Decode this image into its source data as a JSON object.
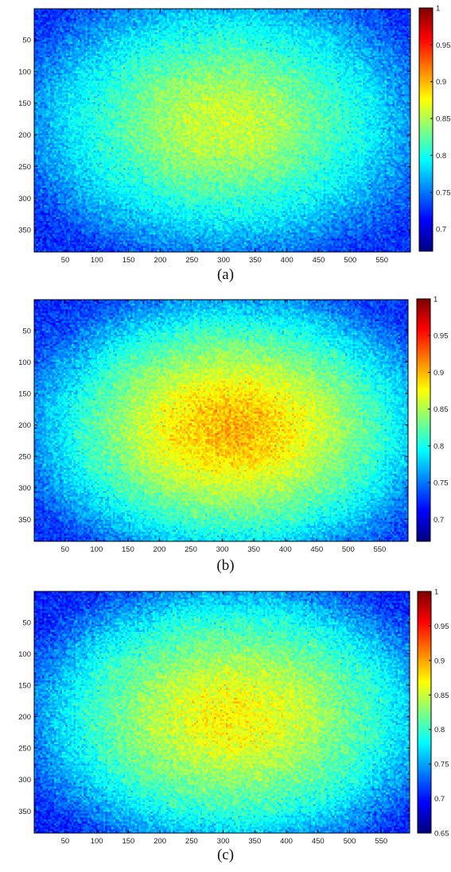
{
  "chart_data": [
    {
      "type": "heatmap",
      "panel_label": "(a)",
      "colormap": "jet",
      "x_ticks": [
        50,
        100,
        150,
        200,
        250,
        300,
        350,
        400,
        450,
        500,
        550
      ],
      "y_ticks": [
        50,
        100,
        150,
        200,
        250,
        300,
        350
      ],
      "xlim": [
        1,
        595
      ],
      "ylim": [
        1,
        385
      ],
      "colorbar_ticks": [
        0.7,
        0.75,
        0.8,
        0.85,
        0.9,
        0.95,
        1
      ],
      "colorbar_tick_labels": [
        "0.7",
        "0.75",
        "0.8",
        "0.85",
        "0.9",
        "0.95",
        "1"
      ],
      "clim": [
        0.67,
        1.0
      ],
      "peak": {
        "x": 300,
        "y": 180,
        "value": 0.86
      },
      "edge_value": 0.75,
      "corner_value": 0.72,
      "noise": 0.025
    },
    {
      "type": "heatmap",
      "panel_label": "(b)",
      "colormap": "jet",
      "x_ticks": [
        50,
        100,
        150,
        200,
        250,
        300,
        350,
        400,
        450,
        500,
        550
      ],
      "y_ticks": [
        50,
        100,
        150,
        200,
        250,
        300,
        350
      ],
      "xlim": [
        1,
        595
      ],
      "ylim": [
        1,
        385
      ],
      "colorbar_ticks": [
        0.7,
        0.75,
        0.8,
        0.85,
        0.9,
        0.95,
        1
      ],
      "colorbar_tick_labels": [
        "0.7",
        "0.75",
        "0.8",
        "0.85",
        "0.9",
        "0.95",
        "1"
      ],
      "clim": [
        0.67,
        1.0
      ],
      "peak": {
        "x": 315,
        "y": 205,
        "value": 0.9
      },
      "edge_value": 0.76,
      "corner_value": 0.72,
      "noise": 0.025
    },
    {
      "type": "heatmap",
      "panel_label": "(c)",
      "colormap": "jet",
      "x_ticks": [
        50,
        100,
        150,
        200,
        250,
        300,
        350,
        400,
        450,
        500,
        550
      ],
      "y_ticks": [
        50,
        100,
        150,
        200,
        250,
        300,
        350
      ],
      "xlim": [
        1,
        595
      ],
      "ylim": [
        1,
        385
      ],
      "colorbar_ticks": [
        0.65,
        0.7,
        0.75,
        0.8,
        0.85,
        0.9,
        0.95,
        1
      ],
      "colorbar_tick_labels": [
        "0.65",
        "0.7",
        "0.75",
        "0.8",
        "0.85",
        "0.9",
        "0.95",
        "1"
      ],
      "clim": [
        0.65,
        1.0
      ],
      "peak": {
        "x": 315,
        "y": 200,
        "value": 0.87
      },
      "edge_value": 0.75,
      "corner_value": 0.7,
      "noise": 0.028
    }
  ]
}
